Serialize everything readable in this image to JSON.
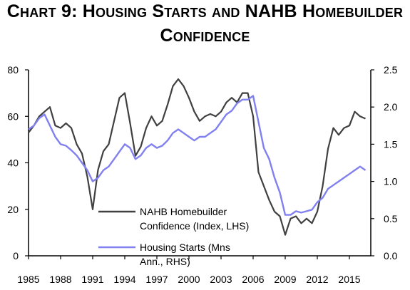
{
  "title_line1": "Chart 9: Housing Starts and NAHB Homebuilder",
  "title_line2": "Confidence",
  "chart_data": {
    "type": "line",
    "title": "Chart 9: Housing Starts and NAHB Homebuilder Confidence",
    "x_ticks": [
      "1985",
      "1988",
      "1991",
      "1994",
      "1997",
      "2000",
      "2003",
      "2006",
      "2009",
      "2012",
      "2015"
    ],
    "y_left": {
      "ylim": [
        0,
        80
      ],
      "ticks": [
        "0",
        "20",
        "40",
        "60",
        "80"
      ]
    },
    "y_right": {
      "ylim": [
        0,
        2.5
      ],
      "ticks": [
        "0.0",
        "0.5",
        "1.0",
        "1.5",
        "2.0",
        "2.5"
      ]
    },
    "grid": false,
    "legend_position": "bottom-left",
    "series": [
      {
        "name": "NAHB Homebuilder Confidence (Index, LHS)",
        "legend_lines": [
          "NAHB Homebuilder",
          "Confidence (Index, LHS)"
        ],
        "axis": "left",
        "color": "#404040",
        "x": [
          1985.0,
          1985.5,
          1986.0,
          1986.5,
          1987.0,
          1987.5,
          1988.0,
          1988.5,
          1989.0,
          1989.5,
          1990.0,
          1990.5,
          1991.0,
          1991.5,
          1992.0,
          1992.5,
          1993.0,
          1993.5,
          1994.0,
          1994.5,
          1995.0,
          1995.5,
          1996.0,
          1996.5,
          1997.0,
          1997.5,
          1998.0,
          1998.5,
          1999.0,
          1999.5,
          2000.0,
          2000.5,
          2001.0,
          2001.5,
          2002.0,
          2002.5,
          2003.0,
          2003.5,
          2004.0,
          2004.5,
          2005.0,
          2005.5,
          2006.0,
          2006.5,
          2007.0,
          2007.5,
          2008.0,
          2008.5,
          2009.0,
          2009.5,
          2010.0,
          2010.5,
          2011.0,
          2011.5,
          2012.0,
          2012.5,
          2013.0,
          2013.5,
          2014.0,
          2014.5,
          2015.0,
          2015.5,
          2016.0,
          2016.5
        ],
        "values": [
          53,
          56,
          60,
          62,
          64,
          56,
          55,
          57,
          55,
          48,
          44,
          34,
          20,
          37,
          45,
          48,
          58,
          68,
          70,
          57,
          43,
          47,
          55,
          60,
          56,
          58,
          65,
          73,
          76,
          73,
          68,
          62,
          58,
          60,
          61,
          60,
          62,
          66,
          68,
          66,
          70,
          70,
          60,
          36,
          30,
          24,
          19,
          17,
          9,
          16,
          17,
          14,
          16,
          14,
          19,
          30,
          46,
          55,
          52,
          55,
          56,
          62,
          60,
          59
        ]
      },
      {
        "name": "Housing Starts (Mns Ann., RHS)",
        "legend_lines": [
          "Housing Starts (Mns",
          "Ann., RHS)"
        ],
        "axis": "right",
        "color": "#8080f0",
        "x": [
          1985.0,
          1985.5,
          1986.0,
          1986.5,
          1987.0,
          1987.5,
          1988.0,
          1988.5,
          1989.0,
          1989.5,
          1990.0,
          1990.5,
          1991.0,
          1991.5,
          1992.0,
          1992.5,
          1993.0,
          1993.5,
          1994.0,
          1994.5,
          1995.0,
          1995.5,
          1996.0,
          1996.5,
          1997.0,
          1997.5,
          1998.0,
          1998.5,
          1999.0,
          1999.5,
          2000.0,
          2000.5,
          2001.0,
          2001.5,
          2002.0,
          2002.5,
          2003.0,
          2003.5,
          2004.0,
          2004.5,
          2005.0,
          2005.5,
          2006.0,
          2006.5,
          2007.0,
          2007.5,
          2008.0,
          2008.5,
          2009.0,
          2009.5,
          2010.0,
          2010.5,
          2011.0,
          2011.5,
          2012.0,
          2012.5,
          2013.0,
          2013.5,
          2014.0,
          2014.5,
          2015.0,
          2015.5,
          2016.0,
          2016.5
        ],
        "values": [
          1.7,
          1.75,
          1.85,
          1.9,
          1.75,
          1.6,
          1.5,
          1.48,
          1.42,
          1.35,
          1.25,
          1.15,
          1.0,
          1.05,
          1.15,
          1.2,
          1.3,
          1.4,
          1.5,
          1.45,
          1.3,
          1.35,
          1.45,
          1.5,
          1.45,
          1.48,
          1.55,
          1.65,
          1.7,
          1.65,
          1.6,
          1.55,
          1.6,
          1.6,
          1.65,
          1.7,
          1.8,
          1.9,
          1.95,
          2.05,
          2.1,
          2.1,
          2.15,
          1.8,
          1.45,
          1.3,
          1.05,
          0.85,
          0.55,
          0.55,
          0.6,
          0.58,
          0.6,
          0.62,
          0.72,
          0.78,
          0.9,
          0.95,
          1.0,
          1.05,
          1.1,
          1.15,
          1.2,
          1.15
        ]
      }
    ]
  }
}
